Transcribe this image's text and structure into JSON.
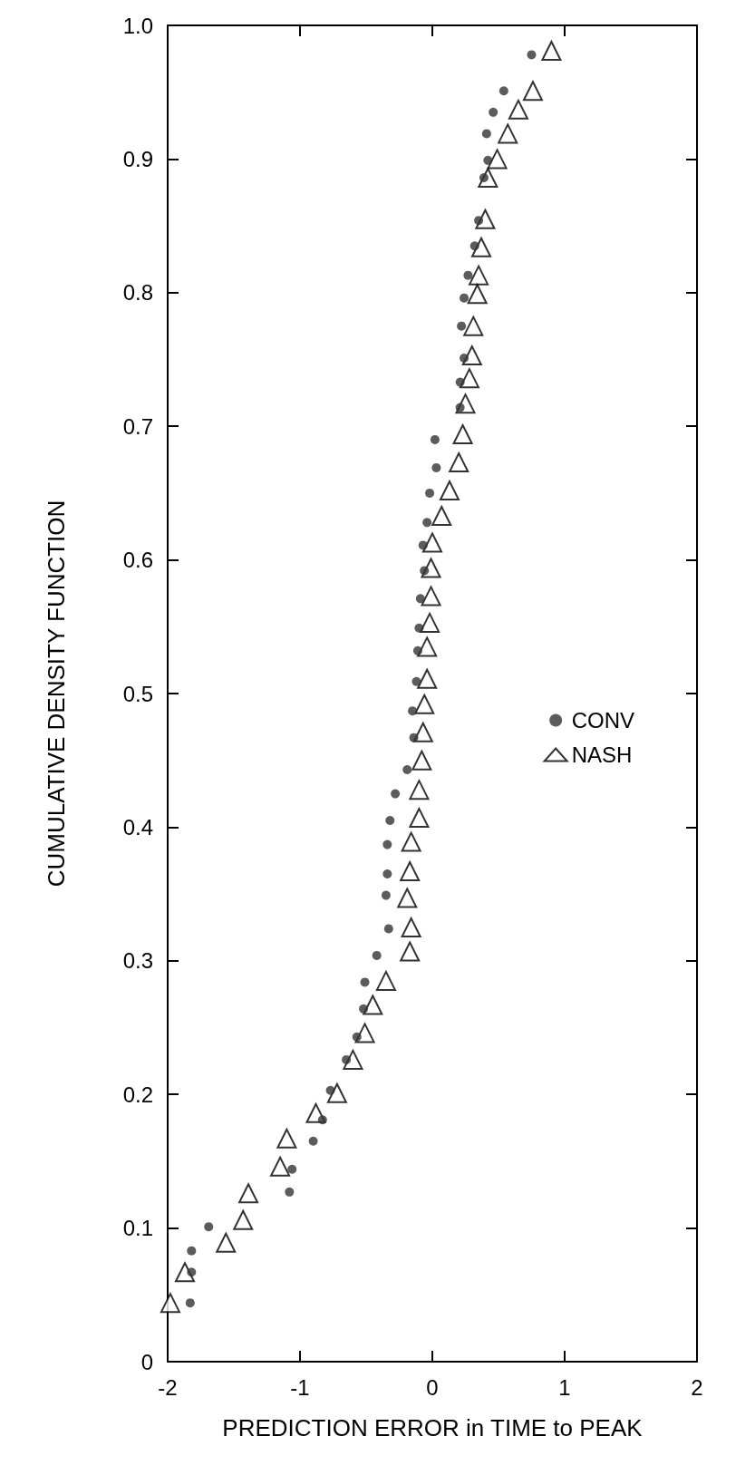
{
  "chart_data": {
    "type": "scatter",
    "xlabel": "PREDICTION ERROR in TIME to PEAK",
    "ylabel": "CUMULATIVE DENSITY FUNCTION",
    "xlim": [
      -2,
      2
    ],
    "xticks": [
      -2,
      -1,
      0,
      1,
      2
    ],
    "ylim": [
      0,
      1
    ],
    "yticks": [
      0,
      {
        "value": 0.1,
        "label": "0.1"
      },
      {
        "value": 0.2,
        "label": "0.2"
      },
      {
        "value": 0.3,
        "label": "0.3"
      },
      {
        "value": 0.4,
        "label": "0.4"
      },
      {
        "value": 0.5,
        "label": "0.5"
      },
      {
        "value": 0.6,
        "label": "0.6"
      },
      {
        "value": 0.7,
        "label": "0.7"
      },
      {
        "value": 0.8,
        "label": "0.8"
      },
      {
        "value": 0.9,
        "label": "0.9"
      },
      {
        "value": 1,
        "label": "1.0"
      }
    ],
    "grid": false,
    "legend": "right",
    "series": [
      {
        "name": "CONV",
        "color": "#333333",
        "marker": "circle",
        "x": [
          0.75,
          0.54,
          0.46,
          0.41,
          0.42,
          0.39,
          0.35,
          0.32,
          0.27,
          0.24,
          0.22,
          0.24,
          0.21,
          0.21,
          0.02,
          0.03,
          -0.02,
          -0.04,
          -0.07,
          -0.06,
          -0.09,
          -0.1,
          -0.11,
          -0.12,
          -0.15,
          -0.14,
          -0.19,
          -0.28,
          -0.32,
          -0.34,
          -0.34,
          -0.35,
          -0.33,
          -0.42,
          -0.51,
          -0.52,
          -0.57,
          -0.65,
          -0.77,
          -0.83,
          -0.9,
          -1.06,
          -1.08,
          -1.69,
          -1.82,
          -1.82,
          -1.83
        ],
        "values": [
          0.978,
          0.951,
          0.935,
          0.919,
          0.899,
          0.886,
          0.854,
          0.835,
          0.813,
          0.796,
          0.775,
          0.751,
          0.733,
          0.714,
          0.69,
          0.669,
          0.65,
          0.628,
          0.611,
          0.592,
          0.571,
          0.549,
          0.532,
          0.509,
          0.487,
          0.467,
          0.443,
          0.425,
          0.405,
          0.387,
          0.365,
          0.349,
          0.324,
          0.304,
          0.284,
          0.264,
          0.243,
          0.226,
          0.203,
          0.181,
          0.165,
          0.144,
          0.127,
          0.101,
          0.083,
          0.067,
          0.044
        ]
      },
      {
        "name": "NASH",
        "color": "#000000",
        "marker": "triangle",
        "x": [
          0.9,
          0.76,
          0.65,
          0.57,
          0.49,
          0.42,
          0.4,
          0.37,
          0.35,
          0.34,
          0.31,
          0.3,
          0.28,
          0.25,
          0.23,
          0.2,
          0.13,
          0.07,
          0.0,
          -0.01,
          -0.01,
          -0.02,
          -0.04,
          -0.04,
          -0.06,
          -0.07,
          -0.08,
          -0.1,
          -0.1,
          -0.16,
          -0.17,
          -0.19,
          -0.16,
          -0.17,
          -0.35,
          -0.45,
          -0.51,
          -0.6,
          -0.72,
          -0.88,
          -1.1,
          -1.15,
          -1.39,
          -1.43,
          -1.56,
          -1.87,
          -1.98
        ],
        "values": [
          0.981,
          0.951,
          0.937,
          0.919,
          0.9,
          0.886,
          0.855,
          0.834,
          0.813,
          0.799,
          0.775,
          0.753,
          0.736,
          0.717,
          0.694,
          0.673,
          0.652,
          0.633,
          0.613,
          0.594,
          0.573,
          0.553,
          0.535,
          0.511,
          0.492,
          0.471,
          0.45,
          0.428,
          0.407,
          0.389,
          0.367,
          0.347,
          0.325,
          0.307,
          0.285,
          0.267,
          0.246,
          0.226,
          0.201,
          0.186,
          0.167,
          0.146,
          0.126,
          0.106,
          0.089,
          0.067,
          0.044
        ]
      }
    ]
  }
}
